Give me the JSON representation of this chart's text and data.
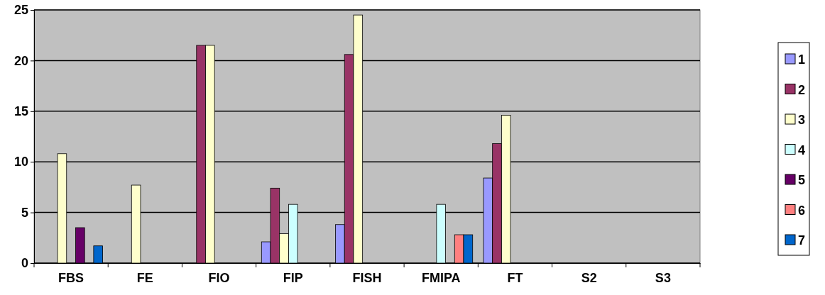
{
  "chart_data": {
    "type": "bar",
    "categories": [
      "FBS",
      "FE",
      "FIO",
      "FIP",
      "FISH",
      "FMIPA",
      "FT",
      "S2",
      "S3"
    ],
    "series": [
      {
        "name": "1",
        "color": "#9999ff",
        "values": [
          0,
          0,
          0,
          2.1,
          3.8,
          0,
          8.4,
          null,
          null
        ]
      },
      {
        "name": "2",
        "color": "#993366",
        "values": [
          0,
          0,
          21.5,
          7.4,
          20.6,
          0,
          11.8,
          null,
          null
        ]
      },
      {
        "name": "3",
        "color": "#ffffcc",
        "values": [
          10.8,
          7.7,
          21.5,
          2.9,
          24.5,
          0,
          14.6,
          null,
          null
        ]
      },
      {
        "name": "4",
        "color": "#ccffff",
        "values": [
          0,
          0,
          0,
          5.8,
          0,
          5.8,
          0,
          null,
          null
        ]
      },
      {
        "name": "5",
        "color": "#660066",
        "values": [
          3.5,
          0,
          0,
          0,
          0,
          0,
          0,
          null,
          null
        ]
      },
      {
        "name": "6",
        "color": "#ff8080",
        "values": [
          0,
          0,
          0,
          0,
          0,
          2.8,
          0,
          null,
          null
        ]
      },
      {
        "name": "7",
        "color": "#0066cc",
        "values": [
          1.7,
          0,
          0,
          0,
          0,
          2.8,
          0,
          null,
          null
        ]
      }
    ],
    "ylim": [
      0,
      25
    ],
    "yticks": [
      0,
      5,
      10,
      15,
      20,
      25
    ],
    "grid": "y",
    "legend": "right"
  }
}
